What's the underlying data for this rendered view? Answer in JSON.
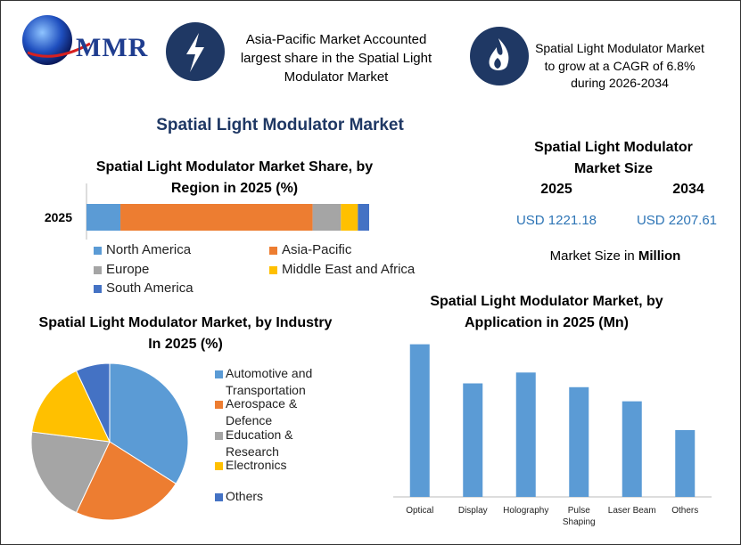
{
  "header": {
    "logo": "MMR",
    "info": [
      "Asia-Pacific Market Accounted largest share in the Spatial Light Modulator Market",
      "Spatial Light Modulator Market to grow at a CAGR of 6.8% during 2026-2034"
    ]
  },
  "title": "Spatial Light Modulator Market",
  "market_size": {
    "title": "Spatial Light Modulator Market Size",
    "years": [
      "2025",
      "2034"
    ],
    "values": [
      "USD 1221.18",
      "USD 2207.61"
    ],
    "unit_note": "Market Size in",
    "unit": "Million"
  },
  "chart_data": [
    {
      "type": "stacked-bar",
      "title": "Spatial Light Modulator Market Share, by Region in 2025 (%)",
      "categories": [
        "2025"
      ],
      "xlim": [
        0,
        100
      ],
      "series": [
        {
          "name": "North America",
          "color": "#5b9bd5",
          "values": [
            12
          ]
        },
        {
          "name": "Asia-Pacific",
          "color": "#ed7d31",
          "values": [
            68
          ]
        },
        {
          "name": "Europe",
          "color": "#a5a5a5",
          "values": [
            10
          ]
        },
        {
          "name": "Middle East and Africa",
          "color": "#ffc000",
          "values": [
            6
          ]
        },
        {
          "name": "South America",
          "color": "#4472c4",
          "values": [
            4
          ]
        }
      ]
    },
    {
      "type": "pie",
      "title": "Spatial Light Modulator Market, by Industry In 2025 (%)",
      "categories": [
        "Automotive and Transportation",
        "Aerospace & Defence",
        "Education & Research",
        "Electronics",
        "Others"
      ],
      "values": [
        34,
        23,
        20,
        16,
        7
      ],
      "colors": [
        "#5b9bd5",
        "#ed7d31",
        "#a5a5a5",
        "#ffc000",
        "#4472c4"
      ]
    },
    {
      "type": "bar",
      "title": "Spatial Light Modulator Market, by Application in 2025 (Mn)",
      "categories": [
        "Optical",
        "Display",
        "Holography",
        "Pulse Shaping",
        "Laser Beam",
        "Others"
      ],
      "values": [
        281,
        209,
        229,
        202,
        176,
        123
      ],
      "color": "#5b9bd5",
      "ylim": [
        0,
        300
      ]
    }
  ]
}
